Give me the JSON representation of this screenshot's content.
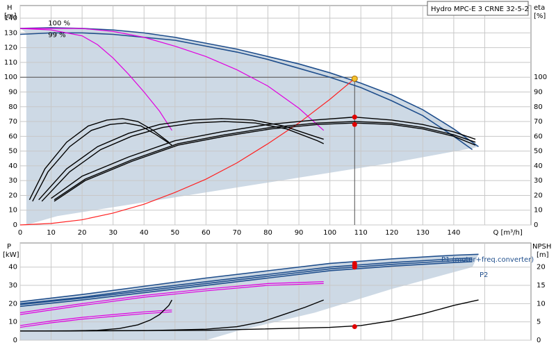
{
  "chart_data": [
    {
      "type": "line",
      "title": "Hydro MPC-E 3 CRNE 32-5-2",
      "xlabel": "Q [m³/h]",
      "ylabel": "H\n[m]",
      "ylabel_right": "eta\n[%]",
      "xlim": [
        0,
        150
      ],
      "ylim": [
        0,
        150
      ],
      "x_ticks": [
        0,
        10,
        20,
        30,
        40,
        50,
        60,
        70,
        80,
        90,
        100,
        110,
        120,
        130,
        140,
        150
      ],
      "y_ticks_left": [
        0,
        10,
        20,
        30,
        40,
        50,
        60,
        70,
        80,
        90,
        100,
        110,
        120,
        130,
        140
      ],
      "y_ticks_right": [
        0,
        10,
        20,
        30,
        40,
        50,
        60,
        70,
        80,
        90,
        100
      ],
      "grid": true,
      "annotations": [
        {
          "text": "100 %",
          "x": 5,
          "y": 137
        },
        {
          "text": "99 %",
          "x": 5,
          "y": 129
        }
      ],
      "duty_point": {
        "x": 108,
        "y": 99
      },
      "duty_line_y": 100,
      "series": [
        {
          "kind": "head-envelope-upper",
          "color": "#1f4e8c",
          "x": [
            0,
            10,
            20,
            30,
            40,
            50,
            60,
            70,
            80,
            90,
            100,
            110,
            120,
            130,
            140,
            148
          ],
          "y": [
            133,
            133.5,
            133,
            132,
            130,
            127,
            123,
            119,
            114,
            109,
            103,
            96,
            88,
            78,
            65,
            53
          ]
        },
        {
          "kind": "head-envelope-lower",
          "color": "#1f4e8c",
          "x": [
            0,
            10,
            20,
            30,
            40,
            50,
            60,
            70,
            80,
            90,
            100,
            110,
            120,
            130,
            140,
            146
          ],
          "y": [
            129,
            130,
            130,
            129,
            127,
            125,
            121,
            117,
            112,
            106,
            100,
            93,
            84,
            74,
            60,
            51
          ]
        },
        {
          "kind": "head-1-pump",
          "color": "#e000e0",
          "x": [
            0,
            10,
            20,
            25,
            30,
            35,
            40,
            45,
            49
          ],
          "y": [
            133,
            132,
            128,
            122,
            113,
            102,
            90,
            77,
            64
          ]
        },
        {
          "kind": "head-2-pumps",
          "color": "#e000e0",
          "x": [
            0,
            20,
            30,
            40,
            50,
            60,
            70,
            80,
            90,
            98
          ],
          "y": [
            133,
            133,
            131,
            127,
            121,
            114,
            105,
            94,
            79,
            64
          ]
        },
        {
          "kind": "system-curve",
          "color": "#ff2020",
          "x": [
            0,
            10,
            20,
            30,
            40,
            50,
            60,
            70,
            80,
            90,
            100,
            108
          ],
          "y": [
            0,
            1,
            3.5,
            8,
            14,
            22,
            31,
            42,
            55,
            69,
            85,
            99
          ]
        },
        {
          "kind": "efficiency-1-pump-a",
          "color": "#000000",
          "x": [
            3,
            8,
            15,
            22,
            28,
            33,
            38,
            43,
            48
          ],
          "y": [
            17,
            38,
            56,
            67,
            71,
            72,
            70,
            64,
            56
          ]
        },
        {
          "kind": "efficiency-1-pump-b",
          "color": "#000000",
          "x": [
            4,
            9,
            16,
            23,
            29,
            34,
            39,
            44,
            49
          ],
          "y": [
            16,
            36,
            53,
            64,
            68,
            69,
            67,
            61,
            54
          ]
        },
        {
          "kind": "efficiency-2-pumps-a",
          "color": "#000000",
          "x": [
            6,
            15,
            25,
            35,
            45,
            55,
            65,
            75,
            85,
            95,
            98
          ],
          "y": [
            17,
            38,
            53,
            62,
            68,
            71,
            72,
            71,
            67,
            60,
            58
          ]
        },
        {
          "kind": "efficiency-2-pumps-b",
          "color": "#000000",
          "x": [
            7,
            16,
            26,
            36,
            46,
            56,
            66,
            76,
            86,
            96,
            98
          ],
          "y": [
            16,
            36,
            51,
            60,
            66,
            69,
            70,
            69,
            65,
            57,
            55
          ]
        },
        {
          "kind": "efficiency-3-pumps-a",
          "color": "#000000",
          "x": [
            10,
            20,
            35,
            50,
            65,
            80,
            95,
            108,
            120,
            130,
            140,
            147
          ],
          "y": [
            18,
            33,
            46,
            57,
            63,
            68,
            71,
            73,
            71,
            68,
            63,
            58
          ]
        },
        {
          "kind": "efficiency-3-pumps-b",
          "color": "#000000",
          "x": [
            11,
            21,
            36,
            51,
            66,
            81,
            96,
            108,
            120,
            130,
            140,
            147
          ],
          "y": [
            17,
            31,
            44,
            55,
            61,
            66,
            69,
            70,
            69,
            66,
            61,
            56
          ]
        },
        {
          "kind": "efficiency-3-pumps-c",
          "color": "#000000",
          "x": [
            11,
            21,
            36,
            51,
            66,
            81,
            96,
            108,
            120,
            130,
            140,
            147
          ],
          "y": [
            16,
            30,
            43,
            54,
            60,
            65,
            68,
            69,
            68,
            65,
            60,
            54
          ]
        }
      ],
      "points": [
        {
          "x": 108,
          "y": 73,
          "color": "#e00000"
        },
        {
          "x": 108,
          "y": 68,
          "color": "#e00000"
        }
      ]
    },
    {
      "type": "line",
      "ylabel": "P\n[kW]",
      "ylabel_right": "NPSH\n[m]",
      "xlim": [
        0,
        150
      ],
      "ylim": [
        0,
        50
      ],
      "y_ticks_left": [
        0,
        10,
        20,
        30,
        40
      ],
      "y_ticks_right": [
        0,
        5,
        10,
        15,
        20
      ],
      "grid": true,
      "legend": [
        {
          "text": "P1 (motor+freq.converter)",
          "color": "#1f4e8c"
        },
        {
          "text": "P2",
          "color": "#1f4e8c"
        }
      ],
      "series": [
        {
          "kind": "P1-upper",
          "color": "#1f4e8c",
          "x": [
            0,
            20,
            40,
            60,
            80,
            100,
            120,
            140,
            148
          ],
          "y": [
            21,
            25,
            29.5,
            34,
            38,
            42,
            44.5,
            46.5,
            47
          ]
        },
        {
          "kind": "P1-lower",
          "color": "#1f4e8c",
          "x": [
            0,
            20,
            40,
            60,
            80,
            100,
            120,
            140,
            146
          ],
          "y": [
            20,
            23.5,
            28,
            32,
            36,
            40,
            42.5,
            44.5,
            45
          ]
        },
        {
          "kind": "P2-upper",
          "color": "#1f4e8c",
          "x": [
            0,
            20,
            40,
            60,
            80,
            100,
            120,
            140,
            146
          ],
          "y": [
            19.5,
            23,
            27,
            31,
            35,
            39,
            41.5,
            43.5,
            44
          ]
        },
        {
          "kind": "P2-lower",
          "color": "#1f4e8c",
          "x": [
            0,
            20,
            40,
            60,
            80,
            100,
            120,
            140,
            146
          ],
          "y": [
            18.5,
            22,
            26,
            30,
            34,
            38,
            40.5,
            42.5,
            43
          ]
        },
        {
          "kind": "P-2-pumps-a",
          "color": "#e000e0",
          "x": [
            0,
            20,
            40,
            60,
            80,
            98
          ],
          "y": [
            15,
            20,
            24.5,
            28,
            31,
            32
          ]
        },
        {
          "kind": "P-2-pumps-b",
          "color": "#e000e0",
          "x": [
            0,
            20,
            40,
            60,
            80,
            98
          ],
          "y": [
            14,
            19,
            23.5,
            27,
            30,
            31
          ]
        },
        {
          "kind": "P-1-pump-a",
          "color": "#e000e0",
          "x": [
            0,
            10,
            20,
            30,
            40,
            49
          ],
          "y": [
            8,
            10.5,
            12.5,
            14,
            15.5,
            16.5
          ]
        },
        {
          "kind": "P-1-pump-b",
          "color": "#e000e0",
          "x": [
            0,
            10,
            20,
            30,
            40,
            49
          ],
          "y": [
            7,
            9.5,
            11.5,
            13,
            14.5,
            15.5
          ]
        },
        {
          "kind": "NPSH-1-pump",
          "color": "#000000",
          "axis": "right",
          "x": [
            0,
            15,
            25,
            32,
            38,
            42,
            45,
            48,
            49
          ],
          "y": [
            2.5,
            2.5,
            2.7,
            3.2,
            4.2,
            5.5,
            7,
            9.5,
            11
          ]
        },
        {
          "kind": "NPSH-2-pumps",
          "color": "#000000",
          "axis": "right",
          "x": [
            0,
            40,
            60,
            70,
            78,
            85,
            92,
            98
          ],
          "y": [
            2.5,
            2.6,
            3,
            3.7,
            5,
            7,
            9,
            11
          ]
        },
        {
          "kind": "NPSH-3-pumps",
          "color": "#000000",
          "axis": "right",
          "x": [
            0,
            60,
            100,
            110,
            120,
            130,
            140,
            148
          ],
          "y": [
            2.5,
            2.7,
            3.5,
            4,
            5.3,
            7.2,
            9.5,
            11
          ]
        }
      ],
      "points": [
        {
          "x": 108,
          "y": 42,
          "color": "#e00000"
        },
        {
          "x": 108,
          "y": 41,
          "color": "#e00000"
        },
        {
          "x": 108,
          "y": 40,
          "color": "#e00000"
        },
        {
          "x": 108,
          "y": 3.7,
          "color": "#e00000",
          "axis": "right"
        }
      ]
    }
  ]
}
